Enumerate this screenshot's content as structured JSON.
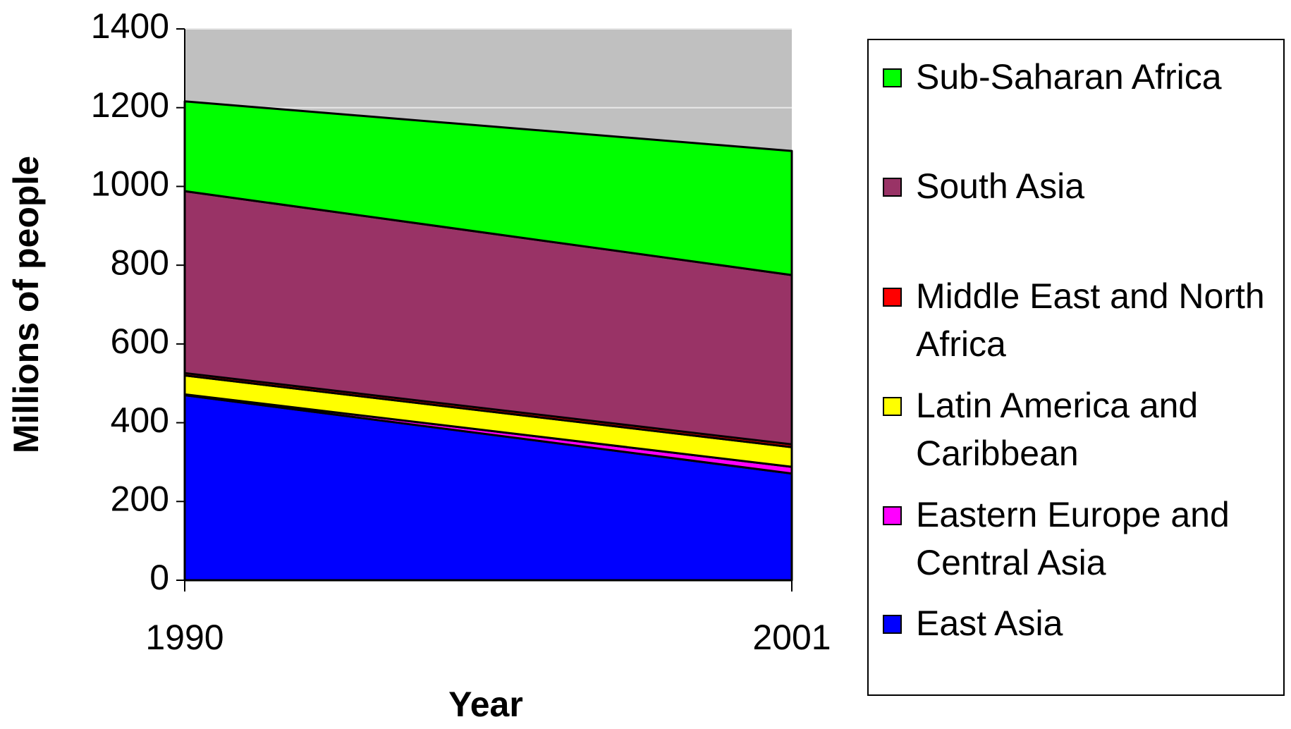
{
  "chart_data": {
    "type": "stacked_area",
    "x_label": "Year",
    "y_label": "Millions of people",
    "categories": [
      "1990",
      "2001"
    ],
    "series": [
      {
        "name": "East Asia",
        "color": "#0000ff",
        "values": [
          470,
          271
        ]
      },
      {
        "name": "Eastern Europe and Central Asia",
        "color": "#ff00ff",
        "values": [
          2,
          17
        ]
      },
      {
        "name": "Latin America and Caribbean",
        "color": "#ffff00",
        "values": [
          48,
          50
        ]
      },
      {
        "name": "Middle East and North Africa",
        "color": "#ff0000",
        "values": [
          6,
          7
        ]
      },
      {
        "name": "South Asia",
        "color": "#993366",
        "values": [
          462,
          430
        ]
      },
      {
        "name": "Sub-Saharan Africa",
        "color": "#00ff00",
        "values": [
          228,
          315
        ]
      }
    ],
    "ylim": [
      0,
      1400
    ],
    "yticks": [
      0,
      200,
      400,
      600,
      800,
      1000,
      1200,
      1400
    ],
    "grid": true,
    "plot_background": "#c0c0c0",
    "legend": "right"
  }
}
